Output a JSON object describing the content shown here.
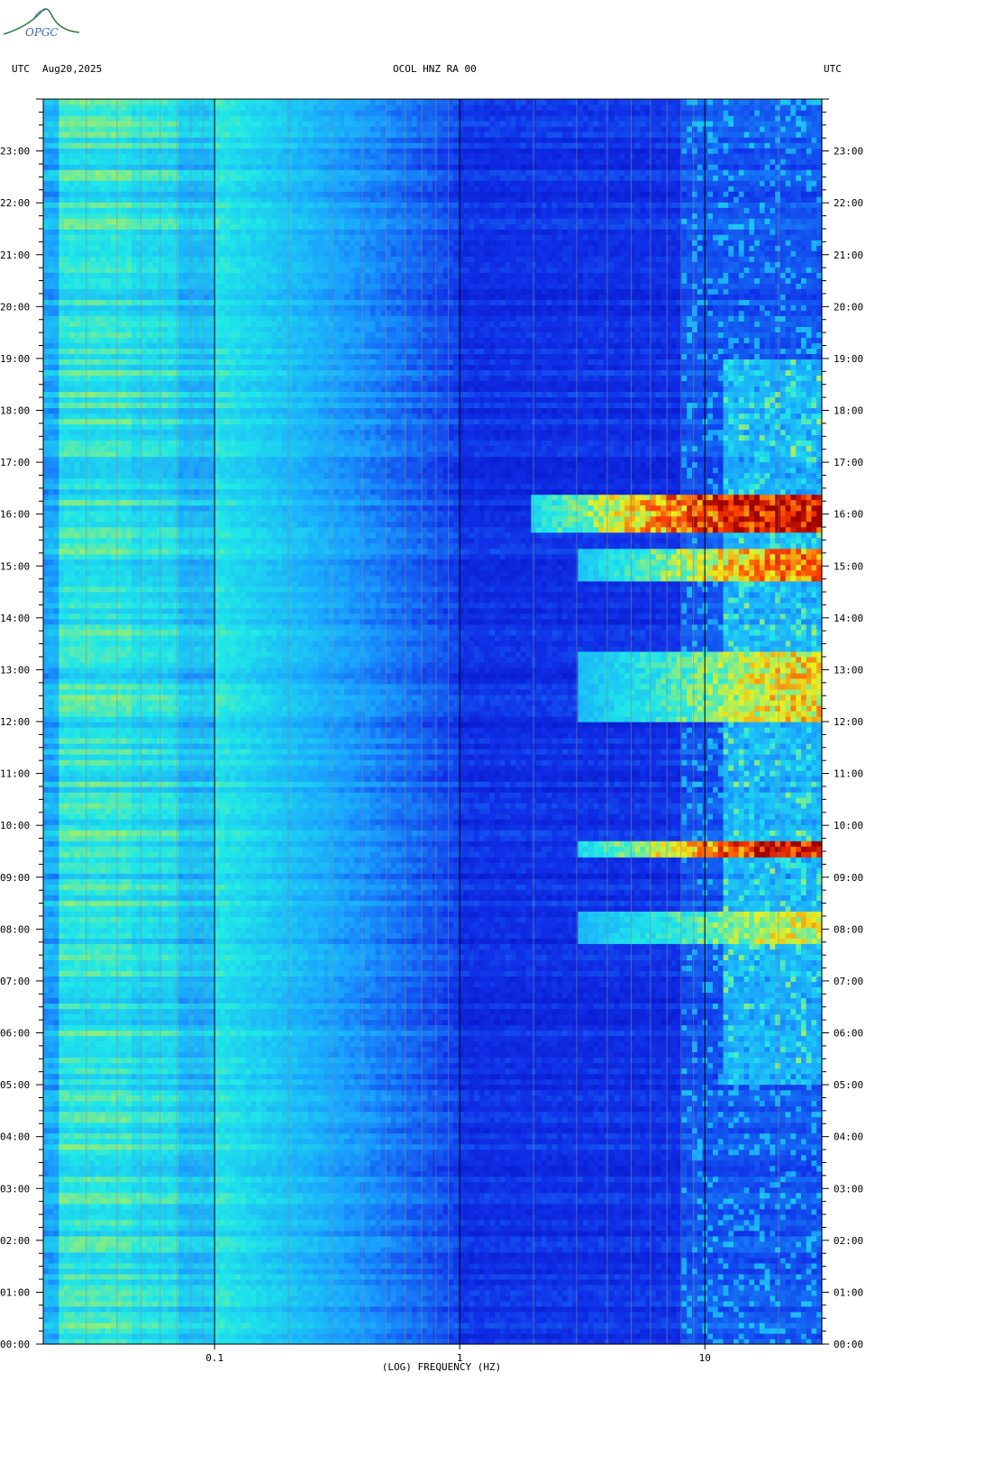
{
  "header": {
    "tz_left": "UTC",
    "date": "Aug20,2025",
    "station": "OCOL HNZ RA 00",
    "tz_right": "UTC"
  },
  "logo": {
    "text": "OPGC",
    "color": "#2e7d3a"
  },
  "chart_data": {
    "type": "heatmap",
    "xlabel": "(LOG) FREQUENCY (HZ)",
    "x_scale": "log",
    "x_range_hz": [
      0.02,
      30
    ],
    "x_ticks": [
      {
        "value": 0.1,
        "label": "0.1"
      },
      {
        "value": 1,
        "label": "1"
      },
      {
        "value": 10,
        "label": "10"
      }
    ],
    "y_range_hours": [
      0,
      24
    ],
    "y_ticks": [
      {
        "hour": 0,
        "label": "00:00"
      },
      {
        "hour": 1,
        "label": "01:00"
      },
      {
        "hour": 2,
        "label": "02:00"
      },
      {
        "hour": 3,
        "label": "03:00"
      },
      {
        "hour": 4,
        "label": "04:00"
      },
      {
        "hour": 5,
        "label": "05:00"
      },
      {
        "hour": 6,
        "label": "06:00"
      },
      {
        "hour": 7,
        "label": "07:00"
      },
      {
        "hour": 8,
        "label": "08:00"
      },
      {
        "hour": 9,
        "label": "09:00"
      },
      {
        "hour": 10,
        "label": "10:00"
      },
      {
        "hour": 11,
        "label": "11:00"
      },
      {
        "hour": 12,
        "label": "12:00"
      },
      {
        "hour": 13,
        "label": "13:00"
      },
      {
        "hour": 14,
        "label": "14:00"
      },
      {
        "hour": 15,
        "label": "15:00"
      },
      {
        "hour": 16,
        "label": "16:00"
      },
      {
        "hour": 17,
        "label": "17:00"
      },
      {
        "hour": 18,
        "label": "18:00"
      },
      {
        "hour": 19,
        "label": "19:00"
      },
      {
        "hour": 20,
        "label": "20:00"
      },
      {
        "hour": 21,
        "label": "21:00"
      },
      {
        "hour": 22,
        "label": "22:00"
      },
      {
        "hour": 23,
        "label": "23:00"
      }
    ],
    "colormap": [
      "#0000b0",
      "#1030e8",
      "#1aa0ff",
      "#20e8e8",
      "#e8f020",
      "#ff4000",
      "#a00000"
    ],
    "event_bands": [
      {
        "start_hour": 15.65,
        "end_hour": 16.4,
        "min_freq_hz": 2,
        "intensity": 1.0
      },
      {
        "start_hour": 14.7,
        "end_hour": 15.3,
        "min_freq_hz": 3,
        "intensity": 0.75
      },
      {
        "start_hour": 12.0,
        "end_hour": 13.4,
        "min_freq_hz": 3,
        "intensity": 0.6
      },
      {
        "start_hour": 9.4,
        "end_hour": 9.75,
        "min_freq_hz": 3,
        "intensity": 1.0
      },
      {
        "start_hour": 7.7,
        "end_hour": 8.35,
        "min_freq_hz": 3,
        "intensity": 0.55
      }
    ]
  }
}
